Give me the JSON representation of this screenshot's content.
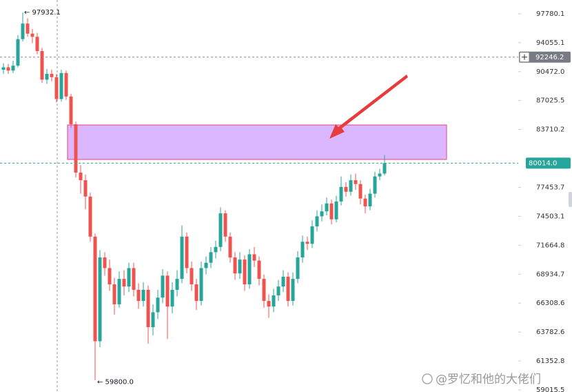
{
  "chart_data": {
    "type": "candlestick",
    "log_scale": true,
    "up_color": "#26a69a",
    "down_color": "#ef5350",
    "open": [
      90700,
      91000,
      90600,
      91200,
      94500,
      96500,
      95200,
      94800,
      93000,
      89500,
      90200,
      89800,
      87200,
      90300,
      87500,
      84300,
      79000,
      78200,
      76500,
      72500,
      63000,
      70500,
      69500,
      68000,
      66200,
      68500,
      67800,
      69500,
      67500,
      66500,
      67500,
      64200,
      65500,
      66800,
      68800,
      66000,
      67500,
      68500,
      72500,
      69500,
      68000,
      66500,
      69500,
      70000,
      71000,
      71500,
      74800,
      72500,
      70500,
      69000,
      70300,
      68000,
      70800,
      70200,
      68500,
      66500,
      66000,
      67000,
      67800,
      68700,
      66500,
      68500,
      70500,
      72000,
      71800,
      73500,
      74500,
      75000,
      75800,
      74200,
      76000,
      77500,
      77000,
      78200,
      77800,
      76300,
      75500,
      76800,
      78600,
      78900
    ],
    "high": [
      91500,
      91400,
      91800,
      95000,
      97932.1,
      97200,
      95800,
      95300,
      93400,
      90800,
      90700,
      90200,
      90700,
      90600,
      87800,
      84600,
      79800,
      78800,
      76900,
      72800,
      71200,
      71000,
      70300,
      68600,
      69200,
      69300,
      70000,
      70000,
      68100,
      68200,
      67900,
      66200,
      67500,
      69400,
      69200,
      68200,
      69300,
      73600,
      72900,
      70100,
      68500,
      70100,
      70600,
      71500,
      72100,
      75400,
      75100,
      72900,
      71000,
      71000,
      70700,
      71300,
      71500,
      70600,
      68900,
      67100,
      67600,
      68400,
      69300,
      69100,
      69100,
      71100,
      72600,
      72500,
      74100,
      75100,
      75700,
      76400,
      76200,
      76600,
      78600,
      78000,
      78800,
      78900,
      78200,
      76700,
      77300,
      79100,
      79400,
      80900
    ],
    "low": [
      90200,
      90200,
      90300,
      91000,
      94200,
      94800,
      94000,
      92600,
      89100,
      89000,
      89300,
      86800,
      86900,
      87100,
      83900,
      78500,
      76800,
      75200,
      72000,
      59800,
      62500,
      68800,
      67400,
      65300,
      65900,
      67000,
      67300,
      66900,
      65800,
      66000,
      62800,
      63500,
      64900,
      66300,
      63200,
      65400,
      66900,
      68100,
      69000,
      67400,
      65700,
      66100,
      68900,
      69500,
      70400,
      71100,
      72000,
      70000,
      68400,
      68500,
      67400,
      67600,
      69600,
      67900,
      65900,
      65000,
      65500,
      66500,
      67300,
      66000,
      66100,
      68100,
      70000,
      71200,
      71400,
      73000,
      74000,
      74600,
      73700,
      73900,
      75600,
      76500,
      76600,
      77200,
      75700,
      74800,
      75100,
      76400,
      78200,
      78700
    ],
    "close": [
      91000,
      90600,
      91200,
      94500,
      96500,
      95200,
      94800,
      93000,
      89500,
      90200,
      89800,
      87200,
      90300,
      87500,
      84300,
      79000,
      78200,
      76500,
      72500,
      63000,
      70500,
      69500,
      68000,
      66200,
      68500,
      67800,
      69500,
      67500,
      66500,
      67500,
      64200,
      65500,
      66800,
      68800,
      66000,
      67500,
      68500,
      72500,
      69500,
      68000,
      66500,
      69500,
      70000,
      71000,
      71500,
      74800,
      72500,
      70500,
      69000,
      70300,
      68000,
      70800,
      70200,
      68500,
      66500,
      66000,
      67000,
      67800,
      68700,
      66500,
      68500,
      70500,
      72000,
      71800,
      73500,
      74500,
      75000,
      75800,
      74200,
      76000,
      77500,
      77000,
      78200,
      77800,
      76300,
      75500,
      76800,
      78600,
      78900,
      80014
    ],
    "ylim": [
      58850,
      99600
    ],
    "yticks": [
      97780.1,
      94055.1,
      {
        "value": 90472.0,
        "label": "90472.0"
      },
      87025.5,
      83710.2,
      77453.7,
      74503.1,
      71664.8,
      68934.7,
      66308.6,
      63782.6,
      61352.8,
      59015.5
    ],
    "price_lines": [
      {
        "value": 92246.2,
        "color": "#787b86"
      },
      {
        "value": 80014.0,
        "label": "80014.0",
        "color": "#26a69a"
      }
    ],
    "extremes": {
      "high_label": "← 97932.1",
      "low_label": "← 59800.0"
    },
    "zone": {
      "low": 80410,
      "high": 84220,
      "color": "#d9b3ff",
      "border": "#e0457b"
    }
  },
  "watermark": "@罗忆和他的大佬们"
}
